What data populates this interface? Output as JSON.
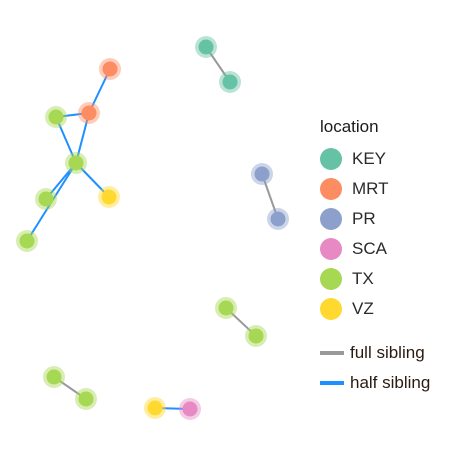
{
  "colors": {
    "KEY": "#66c2a5",
    "MRT": "#fc8d62",
    "PR": "#8da0cb",
    "SCA": "#e78ac3",
    "TX": "#a6d854",
    "VZ": "#ffd92f",
    "full": "#999999",
    "half": "#1e90ff"
  },
  "legend": {
    "title": "location",
    "items": [
      {
        "label": "KEY",
        "key": "KEY"
      },
      {
        "label": "MRT",
        "key": "MRT"
      },
      {
        "label": "PR",
        "key": "PR"
      },
      {
        "label": "SCA",
        "key": "SCA"
      },
      {
        "label": "TX",
        "key": "TX"
      },
      {
        "label": "VZ",
        "key": "VZ"
      }
    ],
    "edge_items": [
      {
        "label": "full sibling",
        "key": "full"
      },
      {
        "label": "half sibling",
        "key": "half"
      }
    ]
  },
  "graph": {
    "nodes": [
      {
        "id": "n1",
        "loc": "KEY"
      },
      {
        "id": "n2",
        "loc": "KEY"
      },
      {
        "id": "n3",
        "loc": "MRT"
      },
      {
        "id": "n4",
        "loc": "MRT"
      },
      {
        "id": "n5",
        "loc": "TX"
      },
      {
        "id": "n6",
        "loc": "TX"
      },
      {
        "id": "n7",
        "loc": "VZ"
      },
      {
        "id": "n8",
        "loc": "TX"
      },
      {
        "id": "n9",
        "loc": "TX"
      },
      {
        "id": "n10",
        "loc": "PR"
      },
      {
        "id": "n11",
        "loc": "PR"
      },
      {
        "id": "n12",
        "loc": "TX"
      },
      {
        "id": "n13",
        "loc": "TX"
      },
      {
        "id": "n14",
        "loc": "TX"
      },
      {
        "id": "n15",
        "loc": "TX"
      },
      {
        "id": "n16",
        "loc": "VZ"
      },
      {
        "id": "n17",
        "loc": "SCA"
      }
    ],
    "edges": [
      {
        "source": "n1",
        "target": "n2",
        "type": "full"
      },
      {
        "source": "n3",
        "target": "n4",
        "type": "half"
      },
      {
        "source": "n4",
        "target": "n5",
        "type": "half"
      },
      {
        "source": "n4",
        "target": "n6",
        "type": "half"
      },
      {
        "source": "n5",
        "target": "n6",
        "type": "half"
      },
      {
        "source": "n6",
        "target": "n7",
        "type": "half"
      },
      {
        "source": "n6",
        "target": "n8",
        "type": "half"
      },
      {
        "source": "n6",
        "target": "n9",
        "type": "half"
      },
      {
        "source": "n10",
        "target": "n11",
        "type": "full"
      },
      {
        "source": "n12",
        "target": "n13",
        "type": "full"
      },
      {
        "source": "n14",
        "target": "n15",
        "type": "full"
      },
      {
        "source": "n16",
        "target": "n17",
        "type": "half"
      }
    ]
  }
}
